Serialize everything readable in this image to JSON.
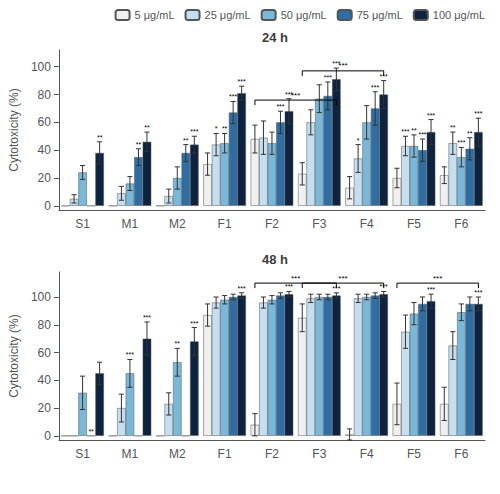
{
  "chart_data": [
    {
      "type": "bar",
      "title": "24 h",
      "y_label": "Cytotoxicity (%)",
      "categories": [
        "S1",
        "M1",
        "M2",
        "F1",
        "F2",
        "F3",
        "F4",
        "F5",
        "F6"
      ],
      "series": [
        {
          "name": "5 μg/mL",
          "color": "#f0f0f0",
          "values": [
            0,
            0,
            0,
            30,
            48,
            23,
            13,
            20,
            22
          ],
          "errors": [
            0,
            0,
            0,
            8,
            10,
            8,
            8,
            7,
            6
          ]
        },
        {
          "name": "25 μg/mL",
          "color": "#c5dff0",
          "values": [
            5,
            9,
            7,
            44,
            49,
            60,
            34,
            43,
            45
          ],
          "errors": [
            3,
            5,
            5,
            8,
            12,
            9,
            10,
            7,
            8
          ]
        },
        {
          "name": "50 μg/mL",
          "color": "#7ab8d9",
          "values": [
            24,
            16,
            20,
            45,
            45,
            77,
            60,
            43,
            35
          ],
          "errors": [
            5,
            5,
            8,
            7,
            8,
            10,
            12,
            8,
            7
          ]
        },
        {
          "name": "75 μg/mL",
          "color": "#2f6ea5",
          "values": [
            0,
            35,
            38,
            67,
            60,
            79,
            70,
            40,
            41
          ],
          "errors": [
            0,
            6,
            6,
            8,
            8,
            10,
            12,
            8,
            8
          ]
        },
        {
          "name": "100 μg/mL",
          "color": "#0d2340",
          "values": [
            38,
            46,
            44,
            81,
            68,
            91,
            80,
            53,
            53
          ],
          "errors": [
            8,
            7,
            6,
            5,
            9,
            8,
            10,
            9,
            10
          ]
        }
      ],
      "annotations": [
        {
          "category": "S1",
          "series": "100 μg/mL",
          "text": "**"
        },
        {
          "category": "M1",
          "series": "75 μg/mL",
          "text": "**"
        },
        {
          "category": "M1",
          "series": "100 μg/mL",
          "text": "**"
        },
        {
          "category": "M2",
          "series": "75 μg/mL",
          "text": "**"
        },
        {
          "category": "M2",
          "series": "100 μg/mL",
          "text": "***"
        },
        {
          "category": "F1",
          "series": "25 μg/mL",
          "text": "*"
        },
        {
          "category": "F1",
          "series": "50 μg/mL",
          "text": "**"
        },
        {
          "category": "F1",
          "series": "75 μg/mL",
          "text": "***"
        },
        {
          "category": "F1",
          "series": "100 μg/mL",
          "text": "***"
        },
        {
          "category": "F2",
          "series": "75 μg/mL",
          "text": "***"
        },
        {
          "category": "F2",
          "series": "100 μg/mL",
          "text": "***"
        },
        {
          "category": "F3",
          "series": "75 μg/mL",
          "text": "***"
        },
        {
          "category": "F3",
          "series": "100 μg/mL",
          "text": "***"
        },
        {
          "category": "F4",
          "series": "25 μg/mL",
          "text": "*"
        },
        {
          "category": "F4",
          "series": "75 μg/mL",
          "text": "***"
        },
        {
          "category": "F4",
          "series": "100 μg/mL",
          "text": "***"
        },
        {
          "category": "F5",
          "series": "25 μg/mL",
          "text": "***"
        },
        {
          "category": "F5",
          "series": "50 μg/mL",
          "text": "**"
        },
        {
          "category": "F5",
          "series": "75 μg/mL",
          "text": "***"
        },
        {
          "category": "F5",
          "series": "100 μg/mL",
          "text": "***"
        },
        {
          "category": "F6",
          "series": "25 μg/mL",
          "text": "**"
        },
        {
          "category": "F6",
          "series": "50 μg/mL",
          "text": "***"
        },
        {
          "category": "F6",
          "series": "75 μg/mL",
          "text": "**"
        },
        {
          "category": "F6",
          "series": "100 μg/mL",
          "text": "***"
        }
      ],
      "brackets": [
        {
          "x1": "F2",
          "x2": "F3",
          "text": "***",
          "y": 76
        },
        {
          "x1": "F3",
          "x2": "F4",
          "text": "***",
          "y": 97
        }
      ],
      "ylim": [
        -3,
        112
      ],
      "yticks": [
        0,
        20,
        40,
        60,
        80,
        100
      ],
      "grid": false,
      "legend": "upper right"
    },
    {
      "type": "bar",
      "title": "48 h",
      "y_label": "Cytotoxicity (%)",
      "categories": [
        "S1",
        "M1",
        "M2",
        "F1",
        "F2",
        "F3",
        "F4",
        "F5",
        "F6"
      ],
      "series": [
        {
          "name": "5 μg/mL",
          "color": "#f0f0f0",
          "values": [
            0,
            0,
            0,
            87,
            8,
            85,
            1,
            23,
            23
          ],
          "errors": [
            0,
            0,
            0,
            8,
            8,
            10,
            4,
            15,
            12
          ]
        },
        {
          "name": "25 μg/mL",
          "color": "#c5dff0",
          "values": [
            0,
            20,
            23,
            96,
            96,
            99,
            99,
            75,
            65
          ],
          "errors": [
            0,
            10,
            8,
            4,
            4,
            3,
            3,
            12,
            10
          ]
        },
        {
          "name": "50 μg/mL",
          "color": "#7ab8d9",
          "values": [
            31,
            45,
            53,
            98,
            98,
            100,
            100,
            88,
            89
          ],
          "errors": [
            12,
            10,
            10,
            3,
            3,
            2,
            2,
            8,
            6
          ]
        },
        {
          "name": "75 μg/mL",
          "color": "#2f6ea5",
          "values": [
            0,
            0,
            0,
            100,
            101,
            100,
            101,
            95,
            95
          ],
          "errors": [
            0,
            0,
            0,
            2,
            2,
            2,
            2,
            5,
            5
          ]
        },
        {
          "name": "100 μg/mL",
          "color": "#0d2340",
          "values": [
            45,
            70,
            68,
            101,
            102,
            101,
            102,
            97,
            95
          ],
          "errors": [
            8,
            12,
            10,
            2,
            2,
            2,
            2,
            5,
            5
          ]
        }
      ],
      "annotations": [
        {
          "category": "S1",
          "series": "75 μg/mL",
          "text": "**"
        },
        {
          "category": "M1",
          "series": "50 μg/mL",
          "text": "***"
        },
        {
          "category": "M1",
          "series": "100 μg/mL",
          "text": "***"
        },
        {
          "category": "M2",
          "series": "50 μg/mL",
          "text": "**"
        },
        {
          "category": "M2",
          "series": "100 μg/mL",
          "text": "***"
        },
        {
          "category": "F1",
          "series": "100 μg/mL",
          "text": "***"
        },
        {
          "category": "F2",
          "series": "100 μg/mL",
          "text": "***"
        },
        {
          "category": "F3",
          "series": "100 μg/mL",
          "text": "***"
        },
        {
          "category": "F4",
          "series": "100 μg/mL",
          "text": "***"
        },
        {
          "category": "F5",
          "series": "100 μg/mL",
          "text": "***"
        },
        {
          "category": "F6",
          "series": "100 μg/mL",
          "text": "***"
        }
      ],
      "brackets": [
        {
          "x1": "F2",
          "x2": "F3",
          "text": "***",
          "y": 110
        },
        {
          "x1": "F3",
          "x2": "F4",
          "text": "***",
          "y": 110
        },
        {
          "x1": "F5",
          "x2": "F6",
          "text": "***",
          "y": 110
        }
      ],
      "ylim": [
        -3,
        118
      ],
      "yticks": [
        0,
        20,
        40,
        60,
        80,
        100
      ],
      "grid": false
    }
  ]
}
